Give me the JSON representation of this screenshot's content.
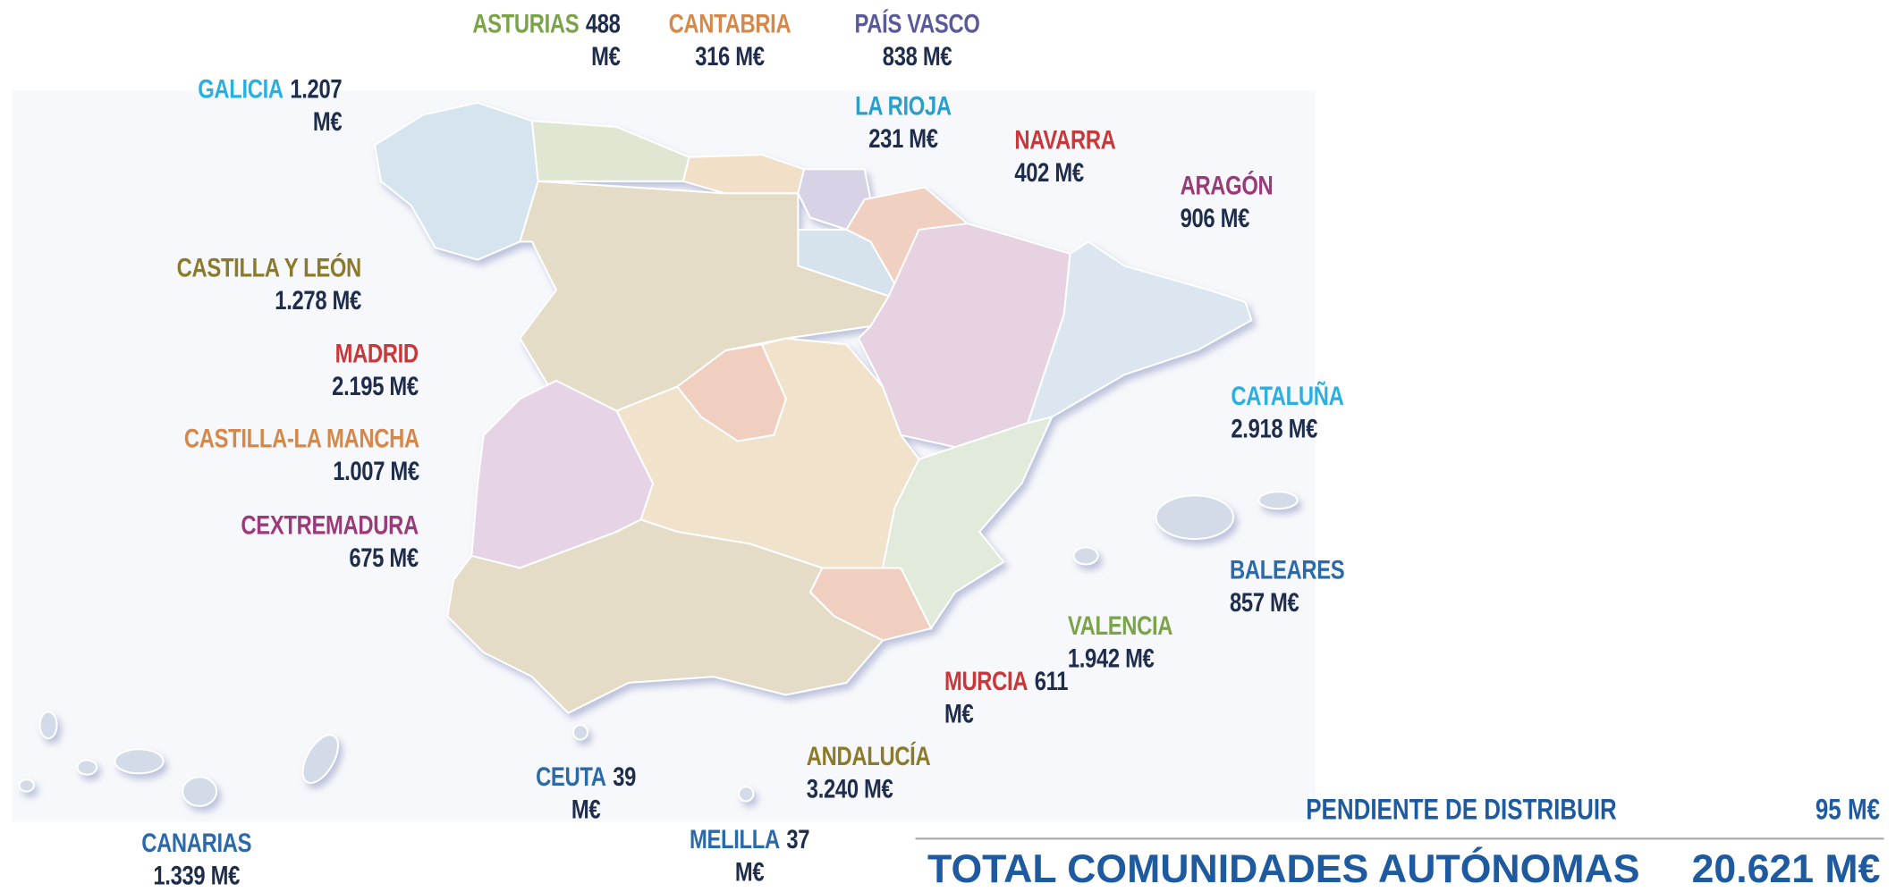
{
  "regions": [
    {
      "name": "ASTURIAS",
      "amount": "488 M€",
      "color": "#7aa34a"
    },
    {
      "name": "CANTABRIA",
      "amount": "316 M€",
      "color": "#d4884a"
    },
    {
      "name": "PAÍS VASCO",
      "amount": "838 M€",
      "color": "#5a5a9a"
    },
    {
      "name": "GALICIA",
      "amount": "1.207 M€",
      "color": "#2ab0e0"
    },
    {
      "name": "LA RIOJA",
      "amount": "231 M€",
      "color": "#2a9fcc"
    },
    {
      "name": "NAVARRA",
      "amount": "402 M€",
      "color": "#c8383a"
    },
    {
      "name": "ARAGÓN",
      "amount": "906 M€",
      "color": "#9a3a7a"
    },
    {
      "name": "CASTILLA Y LEÓN",
      "amount": "1.278 M€",
      "color": "#8a7a2a"
    },
    {
      "name": "MADRID",
      "amount": "2.195 M€",
      "color": "#c8383a"
    },
    {
      "name": "CASTILLA-LA MANCHA",
      "amount": "1.007 M€",
      "color": "#d4884a"
    },
    {
      "name": "CEXTREMADURA",
      "amount": "675 M€",
      "color": "#9a3a7a"
    },
    {
      "name": "CATALUÑA",
      "amount": "2.918 M€",
      "color": "#2ab0e0"
    },
    {
      "name": "BALEARES",
      "amount": "857 M€",
      "color": "#2a6aaa"
    },
    {
      "name": "VALENCIA",
      "amount": "1.942 M€",
      "color": "#7aa34a"
    },
    {
      "name": "MURCIA",
      "amount": "611 M€",
      "color": "#c8383a"
    },
    {
      "name": "ANDALUCÍA",
      "amount": "3.240 M€",
      "color": "#8a7a2a"
    },
    {
      "name": "CEUTA",
      "amount": "39 M€",
      "color": "#2a6aaa"
    },
    {
      "name": "MELILLA",
      "amount": "37 M€",
      "color": "#2a6aaa"
    },
    {
      "name": "CANARIAS",
      "amount": "1.339 M€",
      "color": "#2a6aaa"
    }
  ],
  "pending": {
    "label": "PENDIENTE DE DISTRIBUIR",
    "amount": "95 M€"
  },
  "total": {
    "label": "TOTAL COMUNIDADES AUTÓNOMAS",
    "amount": "20.621 M€"
  }
}
